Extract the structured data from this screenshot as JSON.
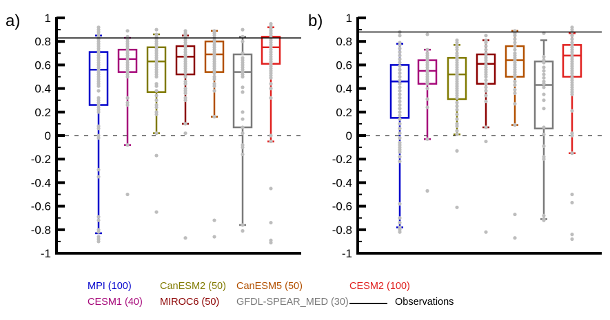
{
  "chart_data": [
    {
      "type": "box",
      "panel_label": "a)",
      "ylim": [
        -1,
        1
      ],
      "yticks": [
        1,
        0.8,
        0.6,
        0.4,
        0.2,
        0,
        -0.2,
        -0.4,
        -0.6,
        -0.8,
        -1
      ],
      "ytick_labels": [
        "1",
        "0.8",
        "0.6",
        "0.4",
        "0.2",
        "0",
        "-0.2",
        "-0.4",
        "-0.6",
        "-0.8",
        "-1"
      ],
      "observation": 0.83,
      "zero_line": 0,
      "series": [
        {
          "name": "MPI",
          "whisker_low": -0.83,
          "q1": 0.26,
          "median": 0.56,
          "q3": 0.71,
          "whisker_high": 0.85,
          "points": [
            0.92,
            0.9,
            0.88,
            0.86,
            0.84,
            0.82,
            0.8,
            0.78,
            0.76,
            0.74,
            0.72,
            0.7,
            0.68,
            0.66,
            0.64,
            0.62,
            0.6,
            0.58,
            0.56,
            0.54,
            0.52,
            0.5,
            0.48,
            0.46,
            0.44,
            0.42,
            0.38,
            0.32,
            0.3,
            0.28,
            0.26,
            0.24,
            0.22,
            0.2,
            0.08,
            0.06,
            0,
            -0.02,
            -0.29,
            -0.35,
            -0.69,
            -0.72,
            -0.8,
            -0.82,
            -0.86,
            -0.88,
            -0.9
          ]
        },
        {
          "name": "CESM1",
          "whisker_low": -0.08,
          "q1": 0.54,
          "median": 0.65,
          "q3": 0.73,
          "whisker_high": 0.83,
          "points": [
            0.89,
            0.84,
            0.82,
            0.8,
            0.78,
            0.76,
            0.74,
            0.72,
            0.7,
            0.68,
            0.66,
            0.64,
            0.62,
            0.6,
            0.58,
            0.56,
            0.54,
            0.52,
            0.5,
            0.32,
            0.28,
            0.26,
            -0.08,
            -0.5
          ]
        },
        {
          "name": "CanESM2",
          "whisker_low": 0.02,
          "q1": 0.37,
          "median": 0.63,
          "q3": 0.75,
          "whisker_high": 0.86,
          "points": [
            0.9,
            0.86,
            0.84,
            0.82,
            0.8,
            0.78,
            0.76,
            0.74,
            0.72,
            0.7,
            0.68,
            0.66,
            0.64,
            0.62,
            0.6,
            0.58,
            0.56,
            0.54,
            0.52,
            0.5,
            0.44,
            0.42,
            0.38,
            0.34,
            0.3,
            0.26,
            0.24,
            0.2,
            0.18,
            0.02,
            -0.17,
            -0.65
          ]
        },
        {
          "name": "MIROC6",
          "whisker_low": 0.1,
          "q1": 0.52,
          "median": 0.67,
          "q3": 0.76,
          "whisker_high": 0.85,
          "points": [
            0.89,
            0.87,
            0.85,
            0.83,
            0.81,
            0.79,
            0.77,
            0.75,
            0.73,
            0.71,
            0.69,
            0.67,
            0.65,
            0.63,
            0.61,
            0.59,
            0.57,
            0.55,
            0.53,
            0.5,
            0.46,
            0.44,
            0.4,
            0.38,
            0.36,
            0.32,
            0.3,
            0.1,
            0.02,
            -0.87
          ]
        },
        {
          "name": "CanESM5",
          "whisker_low": 0.16,
          "q1": 0.54,
          "median": 0.69,
          "q3": 0.8,
          "whisker_high": 0.89,
          "points": [
            0.89,
            0.87,
            0.85,
            0.83,
            0.81,
            0.79,
            0.77,
            0.75,
            0.73,
            0.71,
            0.69,
            0.67,
            0.65,
            0.63,
            0.61,
            0.59,
            0.57,
            0.55,
            0.53,
            0.5,
            0.48,
            0.44,
            0.42,
            0.38,
            0.16,
            -0.72,
            -0.86
          ]
        },
        {
          "name": "GFDL-SPEAR_MED",
          "whisker_low": -0.76,
          "q1": 0.07,
          "median": 0.54,
          "q3": 0.69,
          "whisker_high": 0.84,
          "points": [
            0.9,
            0.84,
            0.8,
            0.7,
            0.66,
            0.64,
            0.62,
            0.6,
            0.58,
            0.56,
            0.54,
            0.52,
            0.5,
            0.41,
            0.37,
            0.2,
            0.14,
            0.07,
            0.02,
            -0.08,
            -0.1,
            -0.16,
            -0.76,
            -0.81
          ]
        },
        {
          "name": "CESM2",
          "whisker_low": -0.05,
          "q1": 0.61,
          "median": 0.75,
          "q3": 0.84,
          "whisker_high": 0.92,
          "points": [
            0.95,
            0.93,
            0.91,
            0.89,
            0.87,
            0.85,
            0.83,
            0.81,
            0.79,
            0.77,
            0.75,
            0.73,
            0.71,
            0.69,
            0.67,
            0.65,
            0.63,
            0.61,
            0.59,
            0.57,
            0.55,
            0.53,
            0.51,
            0.49,
            0.44,
            0.4,
            0.32,
            0,
            -0.05,
            -0.45,
            -0.74,
            -0.89,
            -0.91
          ]
        }
      ]
    },
    {
      "type": "box",
      "panel_label": "b)",
      "ylim": [
        -1,
        1
      ],
      "yticks": [
        1,
        0.8,
        0.6,
        0.4,
        0.2,
        0,
        -0.2,
        -0.4,
        -0.6,
        -0.8,
        -1
      ],
      "ytick_labels": [
        "1",
        "0.8",
        "0.6",
        "0.4",
        "0.2",
        "0",
        "-0.2",
        "-0.4",
        "-0.6",
        "-0.8",
        "-1"
      ],
      "observation": 0.88,
      "zero_line": 0,
      "series": [
        {
          "name": "MPI",
          "whisker_low": -0.78,
          "q1": 0.15,
          "median": 0.46,
          "q3": 0.6,
          "whisker_high": 0.78,
          "points": [
            0.88,
            0.85,
            0.79,
            0.77,
            0.74,
            0.71,
            0.68,
            0.65,
            0.62,
            0.59,
            0.56,
            0.53,
            0.5,
            0.47,
            0.44,
            0.41,
            0.38,
            0.35,
            0.32,
            0.29,
            0.26,
            0.23,
            0.2,
            0.17,
            0.14,
            0.1,
            0.06,
            0.02,
            -0.02,
            -0.06,
            -0.08,
            -0.1,
            -0.12,
            -0.14,
            -0.18,
            -0.22,
            -0.58,
            -0.7,
            -0.74,
            -0.78,
            -0.8,
            -0.82
          ]
        },
        {
          "name": "CESM1",
          "whisker_low": -0.03,
          "q1": 0.44,
          "median": 0.55,
          "q3": 0.64,
          "whisker_high": 0.73,
          "points": [
            0.86,
            0.73,
            0.7,
            0.68,
            0.66,
            0.64,
            0.62,
            0.6,
            0.58,
            0.56,
            0.54,
            0.52,
            0.5,
            0.48,
            0.46,
            0.44,
            0.4,
            0.31,
            0.24,
            -0.03,
            -0.47
          ]
        },
        {
          "name": "CanESM2",
          "whisker_low": 0.01,
          "q1": 0.31,
          "median": 0.52,
          "q3": 0.66,
          "whisker_high": 0.77,
          "points": [
            0.81,
            0.79,
            0.77,
            0.75,
            0.73,
            0.7,
            0.68,
            0.66,
            0.64,
            0.62,
            0.6,
            0.58,
            0.56,
            0.54,
            0.52,
            0.5,
            0.48,
            0.46,
            0.44,
            0.42,
            0.4,
            0.38,
            0.36,
            0.34,
            0.32,
            0.28,
            0.25,
            0.22,
            0.18,
            0.14,
            0.1,
            0.08,
            0.04,
            0.01,
            -0.13,
            -0.61
          ]
        },
        {
          "name": "MIROC6",
          "whisker_low": 0.07,
          "q1": 0.44,
          "median": 0.61,
          "q3": 0.69,
          "whisker_high": 0.81,
          "points": [
            0.85,
            0.81,
            0.79,
            0.76,
            0.73,
            0.7,
            0.68,
            0.66,
            0.64,
            0.62,
            0.6,
            0.58,
            0.56,
            0.54,
            0.52,
            0.5,
            0.47,
            0.44,
            0.41,
            0.38,
            0.34,
            0.29,
            0.07,
            -0.05,
            -0.82
          ]
        },
        {
          "name": "CanESM5",
          "whisker_low": 0.09,
          "q1": 0.5,
          "median": 0.64,
          "q3": 0.76,
          "whisker_high": 0.89,
          "points": [
            0.89,
            0.87,
            0.85,
            0.82,
            0.79,
            0.76,
            0.73,
            0.7,
            0.68,
            0.66,
            0.64,
            0.62,
            0.6,
            0.58,
            0.56,
            0.54,
            0.52,
            0.5,
            0.46,
            0.43,
            0.39,
            0.36,
            0.27,
            0.09,
            -0.67,
            -0.87
          ]
        },
        {
          "name": "GFDL-SPEAR_MED",
          "whisker_low": -0.71,
          "q1": 0.06,
          "median": 0.43,
          "q3": 0.63,
          "whisker_high": 0.81,
          "points": [
            0.87,
            0.67,
            0.64,
            0.62,
            0.58,
            0.55,
            0.52,
            0.49,
            0.46,
            0.44,
            0.41,
            0.35,
            0.3,
            0.23,
            0.07,
            0.01,
            -0.09,
            -0.18,
            -0.2,
            -0.68,
            -0.71,
            -0.72
          ]
        },
        {
          "name": "CESM2",
          "whisker_low": -0.15,
          "q1": 0.5,
          "median": 0.68,
          "q3": 0.77,
          "whisker_high": 0.87,
          "points": [
            0.92,
            0.9,
            0.88,
            0.85,
            0.82,
            0.79,
            0.77,
            0.75,
            0.73,
            0.71,
            0.69,
            0.67,
            0.65,
            0.63,
            0.61,
            0.59,
            0.57,
            0.55,
            0.53,
            0.51,
            0.49,
            0.47,
            0.45,
            0.43,
            0.41,
            0.39,
            0.37,
            0.35,
            0.21,
            0.02,
            0,
            -0.15,
            -0.5,
            -0.57,
            -0.84,
            -0.88
          ]
        }
      ]
    }
  ],
  "legend": {
    "items": [
      {
        "label": "MPI (100)",
        "color": "#0000cc"
      },
      {
        "label": "CanESM2 (50)",
        "color": "#807a00"
      },
      {
        "label": "CanESM5 (50)",
        "color": "#b25000"
      },
      {
        "label": "CESM2 (100)",
        "color": "#e0201e"
      },
      {
        "label": "CESM1 (40)",
        "color": "#a6087a"
      },
      {
        "label": "MIROC6 (50)",
        "color": "#8b0000"
      },
      {
        "label": "GFDL-SPEAR_MED (30)",
        "color": "#7a7a7a"
      }
    ],
    "observations_label": "Observations"
  },
  "colors": {
    "MPI": "#0000cc",
    "CESM1": "#a6087a",
    "CanESM2": "#807a00",
    "MIROC6": "#8b0000",
    "CanESM5": "#b25000",
    "GFDL-SPEAR_MED": "#7a7a7a",
    "CESM2": "#e0201e",
    "points": "#bdbdbd",
    "axis": "#000000"
  }
}
